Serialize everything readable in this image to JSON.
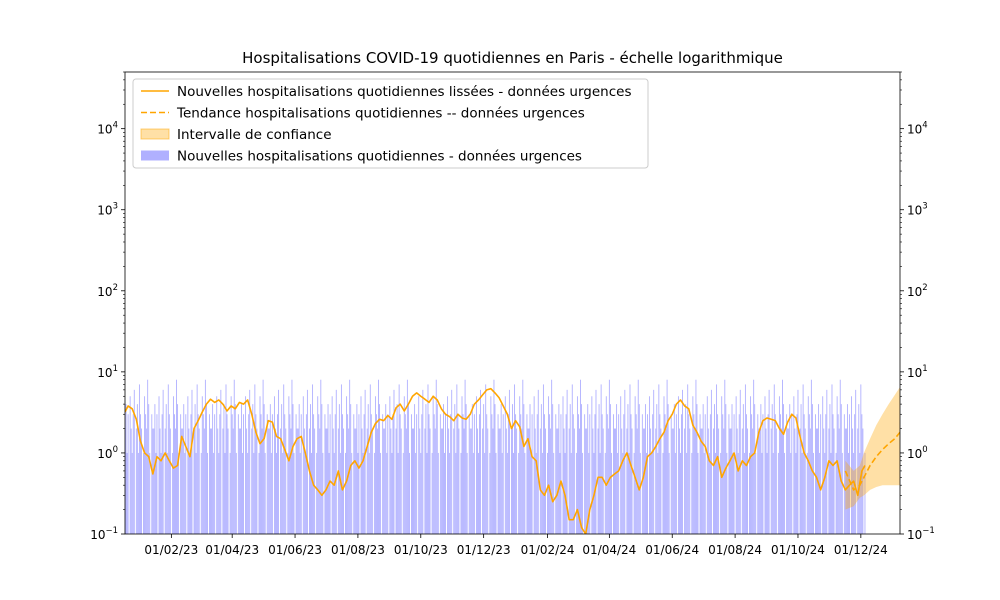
{
  "chart_data": {
    "type": "bar+line",
    "title": "Hospitalisations COVID-19 quotidiennes en Paris - échelle logarithmique",
    "xlabel": "",
    "ylabel": "",
    "yscale": "log",
    "ylim": [
      0.1,
      50000
    ],
    "xlim": [
      "2022-12-18",
      "2025-01-08"
    ],
    "grid": false,
    "legend_position": "upper-left",
    "colors": {
      "line": "#ffa500",
      "band": "#ffa500",
      "bars": "#b0b0ff"
    },
    "x_ticks": [
      {
        "date": "2023-02-01",
        "label": "01/02/23"
      },
      {
        "date": "2023-04-01",
        "label": "01/04/23"
      },
      {
        "date": "2023-06-01",
        "label": "01/06/23"
      },
      {
        "date": "2023-08-01",
        "label": "01/08/23"
      },
      {
        "date": "2023-10-01",
        "label": "01/10/23"
      },
      {
        "date": "2023-12-01",
        "label": "01/12/23"
      },
      {
        "date": "2024-02-01",
        "label": "01/02/24"
      },
      {
        "date": "2024-04-01",
        "label": "01/04/24"
      },
      {
        "date": "2024-06-01",
        "label": "01/06/24"
      },
      {
        "date": "2024-08-01",
        "label": "01/08/24"
      },
      {
        "date": "2024-10-01",
        "label": "01/10/24"
      },
      {
        "date": "2024-12-01",
        "label": "01/12/24"
      }
    ],
    "y_ticks": [
      {
        "value": 0.1,
        "base": "10",
        "exp": "−1"
      },
      {
        "value": 1,
        "base": "10",
        "exp": "0"
      },
      {
        "value": 10,
        "base": "10",
        "exp": "1"
      },
      {
        "value": 100,
        "base": "10",
        "exp": "2"
      },
      {
        "value": 1000,
        "base": "10",
        "exp": "3"
      },
      {
        "value": 10000,
        "base": "10",
        "exp": "4"
      }
    ],
    "legend": [
      {
        "label": "Nouvelles hospitalisations quotidiennes lissées - données urgences",
        "kind": "line"
      },
      {
        "label": "Tendance hospitalisations quotidiennes -- données urgences",
        "kind": "dashed"
      },
      {
        "label": "Intervalle de confiance",
        "kind": "band"
      },
      {
        "label": "Nouvelles hospitalisations quotidiennes - données urgences",
        "kind": "bar"
      }
    ],
    "series": [
      {
        "name": "Nouvelles hospitalisations quotidiennes lissées - données urgences",
        "kind": "line",
        "points": [
          [
            "2022-12-18",
            3.2
          ],
          [
            "2022-12-21",
            3.8
          ],
          [
            "2022-12-25",
            3.5
          ],
          [
            "2022-12-29",
            2.6
          ],
          [
            "2023-01-02",
            1.4
          ],
          [
            "2023-01-06",
            1.0
          ],
          [
            "2023-01-10",
            0.9
          ],
          [
            "2023-01-14",
            0.55
          ],
          [
            "2023-01-18",
            0.9
          ],
          [
            "2023-01-22",
            0.8
          ],
          [
            "2023-01-26",
            1.0
          ],
          [
            "2023-01-30",
            0.8
          ],
          [
            "2023-02-03",
            0.65
          ],
          [
            "2023-02-07",
            0.7
          ],
          [
            "2023-02-11",
            1.6
          ],
          [
            "2023-02-15",
            1.2
          ],
          [
            "2023-02-19",
            0.9
          ],
          [
            "2023-02-23",
            2.0
          ],
          [
            "2023-02-27",
            2.5
          ],
          [
            "2023-03-03",
            3.2
          ],
          [
            "2023-03-07",
            4.0
          ],
          [
            "2023-03-11",
            4.6
          ],
          [
            "2023-03-15",
            4.2
          ],
          [
            "2023-03-19",
            4.5
          ],
          [
            "2023-03-23",
            4.0
          ],
          [
            "2023-03-27",
            3.3
          ],
          [
            "2023-03-31",
            3.8
          ],
          [
            "2023-04-04",
            3.5
          ],
          [
            "2023-04-08",
            4.2
          ],
          [
            "2023-04-12",
            4.0
          ],
          [
            "2023-04-16",
            4.5
          ],
          [
            "2023-04-20",
            3.0
          ],
          [
            "2023-04-24",
            1.8
          ],
          [
            "2023-04-28",
            1.3
          ],
          [
            "2023-05-02",
            1.5
          ],
          [
            "2023-05-06",
            2.5
          ],
          [
            "2023-05-10",
            2.4
          ],
          [
            "2023-05-14",
            1.6
          ],
          [
            "2023-05-18",
            1.5
          ],
          [
            "2023-05-22",
            1.1
          ],
          [
            "2023-05-26",
            0.8
          ],
          [
            "2023-05-30",
            1.2
          ],
          [
            "2023-06-03",
            1.5
          ],
          [
            "2023-06-07",
            1.6
          ],
          [
            "2023-06-11",
            1.0
          ],
          [
            "2023-06-15",
            0.6
          ],
          [
            "2023-06-19",
            0.4
          ],
          [
            "2023-06-23",
            0.35
          ],
          [
            "2023-06-27",
            0.3
          ],
          [
            "2023-07-01",
            0.35
          ],
          [
            "2023-07-05",
            0.45
          ],
          [
            "2023-07-09",
            0.4
          ],
          [
            "2023-07-13",
            0.6
          ],
          [
            "2023-07-17",
            0.35
          ],
          [
            "2023-07-21",
            0.45
          ],
          [
            "2023-07-25",
            0.7
          ],
          [
            "2023-07-29",
            0.8
          ],
          [
            "2023-08-02",
            0.65
          ],
          [
            "2023-08-06",
            0.8
          ],
          [
            "2023-08-10",
            1.2
          ],
          [
            "2023-08-14",
            1.8
          ],
          [
            "2023-08-18",
            2.3
          ],
          [
            "2023-08-22",
            2.6
          ],
          [
            "2023-08-26",
            2.5
          ],
          [
            "2023-08-30",
            2.9
          ],
          [
            "2023-09-03",
            2.6
          ],
          [
            "2023-09-07",
            3.6
          ],
          [
            "2023-09-11",
            4.0
          ],
          [
            "2023-09-15",
            3.3
          ],
          [
            "2023-09-19",
            4.0
          ],
          [
            "2023-09-23",
            5.0
          ],
          [
            "2023-09-27",
            5.5
          ],
          [
            "2023-10-01",
            5.0
          ],
          [
            "2023-10-05",
            4.6
          ],
          [
            "2023-10-09",
            4.2
          ],
          [
            "2023-10-13",
            5.0
          ],
          [
            "2023-10-17",
            4.5
          ],
          [
            "2023-10-21",
            3.5
          ],
          [
            "2023-10-25",
            3.0
          ],
          [
            "2023-10-29",
            2.8
          ],
          [
            "2023-11-02",
            2.5
          ],
          [
            "2023-11-06",
            3.0
          ],
          [
            "2023-11-10",
            2.7
          ],
          [
            "2023-11-14",
            2.6
          ],
          [
            "2023-11-18",
            3.0
          ],
          [
            "2023-11-22",
            4.0
          ],
          [
            "2023-11-26",
            4.5
          ],
          [
            "2023-11-30",
            5.2
          ],
          [
            "2023-12-04",
            6.0
          ],
          [
            "2023-12-08",
            6.2
          ],
          [
            "2023-12-12",
            5.5
          ],
          [
            "2023-12-16",
            4.8
          ],
          [
            "2023-12-20",
            3.8
          ],
          [
            "2023-12-24",
            3.0
          ],
          [
            "2023-12-28",
            2.0
          ],
          [
            "2024-01-01",
            2.5
          ],
          [
            "2024-01-05",
            2.1
          ],
          [
            "2024-01-09",
            1.2
          ],
          [
            "2024-01-13",
            1.5
          ],
          [
            "2024-01-17",
            0.9
          ],
          [
            "2024-01-21",
            0.8
          ],
          [
            "2024-01-25",
            0.35
          ],
          [
            "2024-01-29",
            0.3
          ],
          [
            "2024-02-02",
            0.4
          ],
          [
            "2024-02-06",
            0.25
          ],
          [
            "2024-02-10",
            0.3
          ],
          [
            "2024-02-14",
            0.45
          ],
          [
            "2024-02-18",
            0.3
          ],
          [
            "2024-02-22",
            0.15
          ],
          [
            "2024-02-26",
            0.15
          ],
          [
            "2024-03-01",
            0.2
          ],
          [
            "2024-03-05",
            0.12
          ],
          [
            "2024-03-09",
            0.1
          ],
          [
            "2024-03-13",
            0.2
          ],
          [
            "2024-03-17",
            0.3
          ],
          [
            "2024-03-21",
            0.5
          ],
          [
            "2024-03-25",
            0.5
          ],
          [
            "2024-03-29",
            0.4
          ],
          [
            "2024-04-02",
            0.5
          ],
          [
            "2024-04-06",
            0.55
          ],
          [
            "2024-04-10",
            0.6
          ],
          [
            "2024-04-14",
            0.8
          ],
          [
            "2024-04-18",
            1.0
          ],
          [
            "2024-04-22",
            0.7
          ],
          [
            "2024-04-26",
            0.5
          ],
          [
            "2024-04-30",
            0.35
          ],
          [
            "2024-05-04",
            0.5
          ],
          [
            "2024-05-08",
            0.9
          ],
          [
            "2024-05-12",
            1.0
          ],
          [
            "2024-05-16",
            1.2
          ],
          [
            "2024-05-20",
            1.5
          ],
          [
            "2024-05-24",
            1.8
          ],
          [
            "2024-05-28",
            2.5
          ],
          [
            "2024-06-01",
            3.0
          ],
          [
            "2024-06-05",
            4.0
          ],
          [
            "2024-06-09",
            4.5
          ],
          [
            "2024-06-13",
            3.8
          ],
          [
            "2024-06-17",
            3.5
          ],
          [
            "2024-06-21",
            2.2
          ],
          [
            "2024-06-25",
            1.8
          ],
          [
            "2024-06-29",
            1.4
          ],
          [
            "2024-07-03",
            1.2
          ],
          [
            "2024-07-07",
            0.8
          ],
          [
            "2024-07-11",
            0.7
          ],
          [
            "2024-07-15",
            0.9
          ],
          [
            "2024-07-19",
            0.5
          ],
          [
            "2024-07-23",
            0.65
          ],
          [
            "2024-07-27",
            0.8
          ],
          [
            "2024-07-31",
            1.0
          ],
          [
            "2024-08-04",
            0.6
          ],
          [
            "2024-08-08",
            0.8
          ],
          [
            "2024-08-12",
            0.7
          ],
          [
            "2024-08-16",
            0.9
          ],
          [
            "2024-08-20",
            1.0
          ],
          [
            "2024-08-24",
            1.8
          ],
          [
            "2024-08-28",
            2.5
          ],
          [
            "2024-09-01",
            2.7
          ],
          [
            "2024-09-05",
            2.6
          ],
          [
            "2024-09-09",
            2.5
          ],
          [
            "2024-09-13",
            2.0
          ],
          [
            "2024-09-17",
            1.7
          ],
          [
            "2024-09-21",
            2.4
          ],
          [
            "2024-09-25",
            3.0
          ],
          [
            "2024-09-29",
            2.7
          ],
          [
            "2024-10-03",
            1.6
          ],
          [
            "2024-10-07",
            1.0
          ],
          [
            "2024-10-11",
            0.8
          ],
          [
            "2024-10-15",
            0.6
          ],
          [
            "2024-10-19",
            0.5
          ],
          [
            "2024-10-23",
            0.35
          ],
          [
            "2024-10-27",
            0.5
          ],
          [
            "2024-10-31",
            0.8
          ],
          [
            "2024-11-04",
            0.7
          ],
          [
            "2024-11-08",
            0.8
          ],
          [
            "2024-11-12",
            0.45
          ],
          [
            "2024-11-16",
            0.35
          ],
          [
            "2024-11-20",
            0.4
          ],
          [
            "2024-11-24",
            0.45
          ],
          [
            "2024-11-28",
            0.3
          ],
          [
            "2024-12-02",
            0.6
          ],
          [
            "2024-12-05",
            0.7
          ]
        ]
      },
      {
        "name": "Tendance hospitalisations quotidiennes -- données urgences",
        "kind": "dashed",
        "points": [
          [
            "2024-11-16",
            0.6
          ],
          [
            "2024-11-24",
            0.35
          ],
          [
            "2024-11-30",
            0.4
          ],
          [
            "2024-12-04",
            0.5
          ],
          [
            "2024-12-10",
            0.7
          ],
          [
            "2024-12-16",
            0.9
          ],
          [
            "2024-12-22",
            1.1
          ],
          [
            "2024-12-28",
            1.3
          ],
          [
            "2025-01-03",
            1.5
          ],
          [
            "2025-01-08",
            1.8
          ]
        ]
      },
      {
        "name": "Intervalle de confiance",
        "kind": "band",
        "points": [
          [
            "2024-11-16",
            0.2,
            0.8
          ],
          [
            "2024-11-24",
            0.22,
            0.6
          ],
          [
            "2024-11-30",
            0.28,
            0.7
          ],
          [
            "2024-12-04",
            0.3,
            1.0
          ],
          [
            "2024-12-10",
            0.35,
            1.5
          ],
          [
            "2024-12-16",
            0.38,
            2.2
          ],
          [
            "2024-12-22",
            0.4,
            3.0
          ],
          [
            "2024-12-28",
            0.4,
            4.0
          ],
          [
            "2025-01-03",
            0.4,
            5.2
          ],
          [
            "2025-01-08",
            0.4,
            6.5
          ]
        ]
      },
      {
        "name": "Nouvelles hospitalisations quotidiennes - données urgences",
        "kind": "bar",
        "start": "2022-12-18",
        "end": "2024-12-05",
        "pattern_values": [
          2,
          4,
          1,
          3,
          0,
          5,
          2,
          1,
          3,
          6,
          0,
          2,
          4,
          1,
          7,
          3,
          2,
          0,
          1,
          5,
          3,
          2,
          8,
          4,
          1,
          0,
          3,
          2
        ]
      }
    ]
  }
}
